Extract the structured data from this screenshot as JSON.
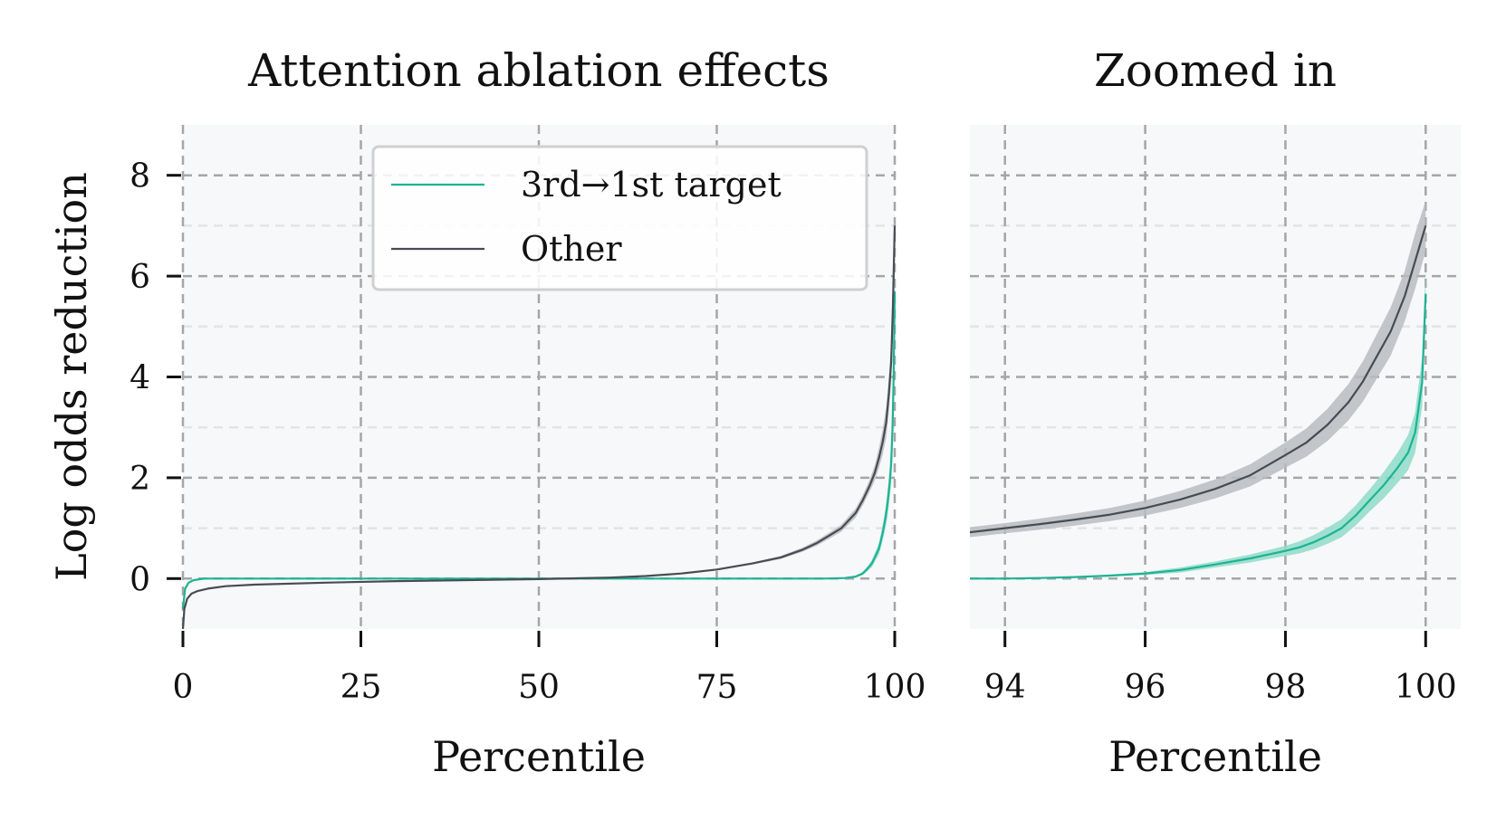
{
  "colors": {
    "target": "#1db393",
    "target_band": "#8fdcc8",
    "other": "#474c53",
    "other_band": "#b9bcbf",
    "plot_bg": "#f7f8fa",
    "grid_major": "#a6a6a6",
    "grid_minor": "#e2e4e6"
  },
  "chart_data": [
    {
      "id": "main",
      "type": "line",
      "title": "Attention ablation effects",
      "xlabel": "Percentile",
      "ylabel": "Log odds reduction",
      "xlim": [
        0,
        100
      ],
      "ylim": [
        -1,
        9
      ],
      "xticks": [
        0,
        25,
        50,
        75,
        100
      ],
      "xtick_labels": [
        "0",
        "25",
        "50",
        "75",
        "100"
      ],
      "yticks": [
        0,
        2,
        4,
        6,
        8
      ],
      "ytick_labels": [
        "0",
        "2",
        "4",
        "6",
        "8"
      ],
      "grid": true,
      "legend": {
        "position": "top-right",
        "entries": [
          "3rd→1st target",
          "Other"
        ]
      },
      "series": [
        {
          "name": "3rd→1st target",
          "color_key": "target",
          "x": [
            0,
            0.3,
            0.8,
            1.5,
            3,
            10,
            30,
            60,
            90,
            93,
            94.5,
            95.5,
            96.2,
            96.8,
            97.3,
            97.8,
            98.3,
            98.7,
            99.0,
            99.3,
            99.5,
            99.7,
            99.85,
            100
          ],
          "y": [
            -0.6,
            -0.2,
            -0.08,
            -0.03,
            0,
            0,
            0,
            0,
            0,
            0.01,
            0.04,
            0.1,
            0.2,
            0.3,
            0.45,
            0.6,
            0.9,
            1.2,
            1.5,
            1.9,
            2.3,
            3.0,
            4.0,
            5.7
          ],
          "band": [
            0,
            0,
            0,
            0,
            0,
            0,
            0,
            0,
            0,
            0.01,
            0.02,
            0.03,
            0.05,
            0.07,
            0.09,
            0.12,
            0.15,
            0.2,
            0.25,
            0.3,
            0.4,
            0.5,
            0.6,
            0.5
          ]
        },
        {
          "name": "Other",
          "color_key": "other",
          "x": [
            0,
            0.2,
            0.6,
            1.2,
            2,
            3.5,
            6,
            10,
            20,
            30,
            40,
            50,
            60,
            65,
            70,
            75,
            80,
            84,
            87,
            89,
            91,
            92.5,
            93.5,
            94.5,
            95.5,
            96.5,
            97.2,
            97.8,
            98.3,
            98.8,
            99.2,
            99.5,
            99.75,
            100
          ],
          "y": [
            -1.0,
            -0.6,
            -0.4,
            -0.3,
            -0.25,
            -0.2,
            -0.15,
            -0.12,
            -0.08,
            -0.05,
            -0.03,
            -0.01,
            0.02,
            0.05,
            0.1,
            0.18,
            0.3,
            0.42,
            0.57,
            0.7,
            0.87,
            1.0,
            1.15,
            1.3,
            1.55,
            1.85,
            2.1,
            2.4,
            2.7,
            3.1,
            3.7,
            4.3,
            5.4,
            7.0
          ],
          "band": [
            0,
            0,
            0,
            0,
            0,
            0,
            0,
            0,
            0,
            0,
            0,
            0,
            0,
            0,
            0.01,
            0.01,
            0.02,
            0.03,
            0.04,
            0.05,
            0.06,
            0.07,
            0.08,
            0.09,
            0.1,
            0.12,
            0.15,
            0.2,
            0.25,
            0.3,
            0.35,
            0.4,
            0.4,
            0.3
          ]
        }
      ]
    },
    {
      "id": "zoom",
      "type": "line",
      "title": "Zoomed in",
      "xlabel": "Percentile",
      "ylabel": "",
      "xlim": [
        93.5,
        100.5
      ],
      "ylim": [
        -1,
        9
      ],
      "xticks": [
        94,
        96,
        98,
        100
      ],
      "xtick_labels": [
        "94",
        "96",
        "98",
        "100"
      ],
      "yticks": [
        0,
        2,
        4,
        6,
        8
      ],
      "grid": true,
      "series": [
        {
          "name": "3rd→1st target",
          "color_key": "target",
          "x": [
            93.5,
            94.0,
            94.5,
            95.0,
            95.5,
            96.0,
            96.5,
            97.0,
            97.5,
            98.0,
            98.2,
            98.4,
            98.6,
            98.8,
            99.0,
            99.2,
            99.4,
            99.6,
            99.75,
            99.85,
            99.95,
            100.0
          ],
          "y": [
            0.0,
            0.0,
            0.01,
            0.03,
            0.06,
            0.1,
            0.17,
            0.28,
            0.4,
            0.55,
            0.62,
            0.72,
            0.85,
            1.0,
            1.25,
            1.55,
            1.85,
            2.2,
            2.5,
            2.9,
            3.9,
            5.65
          ],
          "band": [
            0,
            0,
            0.01,
            0.01,
            0.02,
            0.03,
            0.05,
            0.06,
            0.08,
            0.1,
            0.12,
            0.14,
            0.16,
            0.18,
            0.2,
            0.22,
            0.26,
            0.3,
            0.35,
            0.4,
            0.5,
            0.5
          ]
        },
        {
          "name": "Other",
          "color_key": "other",
          "x": [
            93.5,
            94.0,
            94.5,
            95.0,
            95.5,
            96.0,
            96.5,
            97.0,
            97.5,
            98.0,
            98.3,
            98.6,
            98.9,
            99.1,
            99.3,
            99.5,
            99.7,
            99.85,
            100.0
          ],
          "y": [
            0.92,
            1.0,
            1.08,
            1.17,
            1.27,
            1.4,
            1.57,
            1.78,
            2.05,
            2.45,
            2.7,
            3.05,
            3.5,
            3.9,
            4.4,
            4.9,
            5.6,
            6.3,
            7.0
          ],
          "band": [
            0.1,
            0.1,
            0.11,
            0.12,
            0.13,
            0.15,
            0.17,
            0.19,
            0.22,
            0.25,
            0.28,
            0.32,
            0.36,
            0.4,
            0.44,
            0.48,
            0.5,
            0.55,
            0.5
          ]
        }
      ]
    }
  ]
}
